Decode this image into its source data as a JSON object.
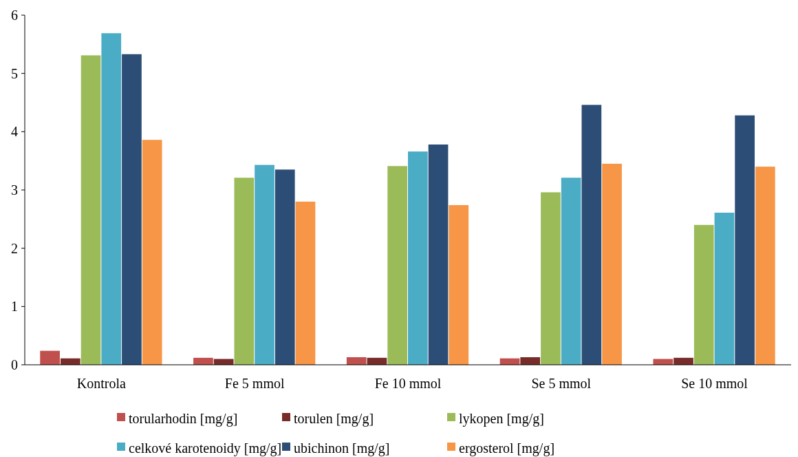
{
  "chart_data": {
    "type": "bar",
    "categories": [
      "Kontrola",
      "Fe 5 mmol",
      "Fe 10 mmol",
      "Se 5 mmol",
      "Se 10 mmol"
    ],
    "series": [
      {
        "name": "torularhodin [mg/g]",
        "color": "#c0504d",
        "values": [
          0.24,
          0.12,
          0.13,
          0.11,
          0.1
        ]
      },
      {
        "name": "torulen [mg/g]",
        "color": "#772c2a",
        "values": [
          0.11,
          0.1,
          0.12,
          0.13,
          0.12
        ]
      },
      {
        "name": "lykopen [mg/g]",
        "color": "#9bbb59",
        "values": [
          5.31,
          3.21,
          3.41,
          2.96,
          2.4
        ]
      },
      {
        "name": "celkové karotenoidy [mg/g]",
        "color": "#4bacc6",
        "values": [
          5.69,
          3.43,
          3.66,
          3.21,
          2.61
        ]
      },
      {
        "name": "ubichinon [mg/g]",
        "color": "#2c4d75",
        "values": [
          5.33,
          3.35,
          3.78,
          4.46,
          4.28
        ]
      },
      {
        "name": "ergosterol [mg/g]",
        "color": "#f79646",
        "values": [
          3.86,
          2.8,
          2.74,
          3.45,
          3.4
        ]
      }
    ],
    "ylim": [
      0,
      6
    ],
    "yticks": [
      0,
      1,
      2,
      3,
      4,
      5,
      6
    ],
    "grid": false,
    "legend": "bottom"
  }
}
